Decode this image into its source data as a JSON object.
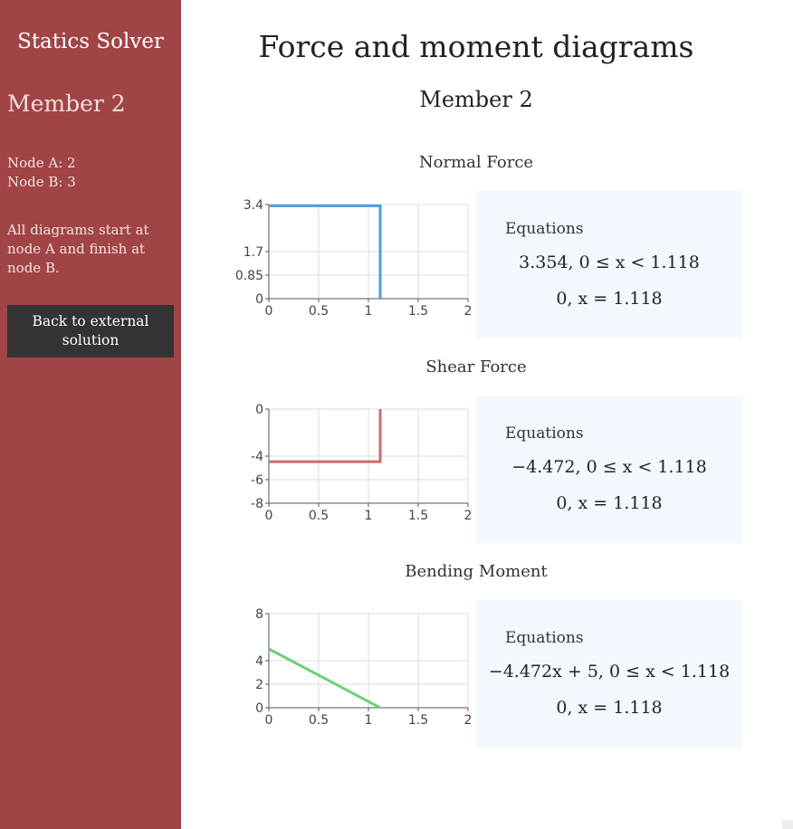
{
  "sidebar": {
    "app_title": "Statics Solver",
    "member_title": "Member 2",
    "node_a": "Node A: 2",
    "node_b": "Node B: 3",
    "note": "All diagrams start at node A and finish at node B.",
    "back_button": "Back to external solution"
  },
  "main": {
    "title": "Force and moment diagrams",
    "subtitle": "Member 2"
  },
  "colors": {
    "sidebar": "#a04446",
    "normal": "#4a9ee0",
    "shear": "#d16a6a",
    "moment": "#6fcf7a",
    "equation_bg": "#f3f8ff"
  },
  "chart_data": [
    {
      "type": "line",
      "title": "Normal Force",
      "color": "#4a9ee0",
      "xlim": [
        0,
        2
      ],
      "ylim": [
        0,
        3.4
      ],
      "x_ticks": [
        "0",
        "0.5",
        "1",
        "1.5",
        "2"
      ],
      "y_ticks": [
        "0",
        "0.85",
        "1.7",
        "3.4"
      ],
      "points": [
        [
          0,
          3.354
        ],
        [
          1.118,
          3.354
        ],
        [
          1.118,
          0
        ]
      ],
      "equations_label": "Equations",
      "equations": [
        "3.354, 0 ≤ x < 1.118",
        "0, x = 1.118"
      ]
    },
    {
      "type": "line",
      "title": "Shear Force",
      "color": "#d16a6a",
      "xlim": [
        0,
        2
      ],
      "ylim": [
        -8,
        0
      ],
      "x_ticks": [
        "0",
        "0.5",
        "1",
        "1.5",
        "2"
      ],
      "y_ticks": [
        "0",
        "-4",
        "-6",
        "-8"
      ],
      "points": [
        [
          0,
          -4.472
        ],
        [
          1.118,
          -4.472
        ],
        [
          1.118,
          0
        ]
      ],
      "equations_label": "Equations",
      "equations": [
        "−4.472, 0 ≤ x < 1.118",
        "0, x = 1.118"
      ]
    },
    {
      "type": "line",
      "title": "Bending Moment",
      "color": "#6fcf7a",
      "xlim": [
        0,
        2
      ],
      "ylim": [
        0,
        8
      ],
      "x_ticks": [
        "0",
        "0.5",
        "1",
        "1.5",
        "2"
      ],
      "y_ticks": [
        "0",
        "2",
        "4",
        "8"
      ],
      "points": [
        [
          0,
          5
        ],
        [
          1.118,
          0
        ]
      ],
      "equations_label": "Equations",
      "equations": [
        "−4.472x + 5, 0 ≤ x < 1.118",
        "0, x = 1.118"
      ]
    }
  ]
}
